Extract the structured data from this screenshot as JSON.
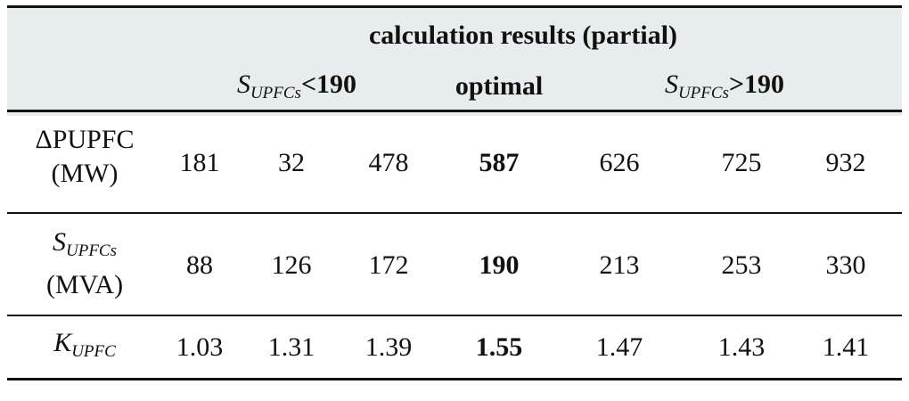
{
  "table": {
    "group_header": "calculation results (partial)",
    "subheaders": {
      "left": {
        "symbol": "S",
        "subscript": "UPFCs",
        "rest": "<190"
      },
      "middle": "optimal",
      "right": {
        "symbol": "S",
        "subscript": "UPFCs",
        "rest": ">190"
      }
    },
    "rows": [
      {
        "label_line1": "ΔPUPFC",
        "label_line2": "(MW)",
        "values": [
          "181",
          "32",
          "478",
          "587",
          "626",
          "725",
          "932"
        ]
      },
      {
        "label_symbol": "S",
        "label_subscript": "UPFCs",
        "label_line2": "(MVA)",
        "values": [
          "88",
          "126",
          "172",
          "190",
          "213",
          "253",
          "330"
        ]
      },
      {
        "label_symbol": "K",
        "label_subscript": "UPFC",
        "values": [
          "1.03",
          "1.31",
          "1.39",
          "1.55",
          "1.47",
          "1.43",
          "1.41"
        ]
      }
    ],
    "bold_column_index": 3
  }
}
